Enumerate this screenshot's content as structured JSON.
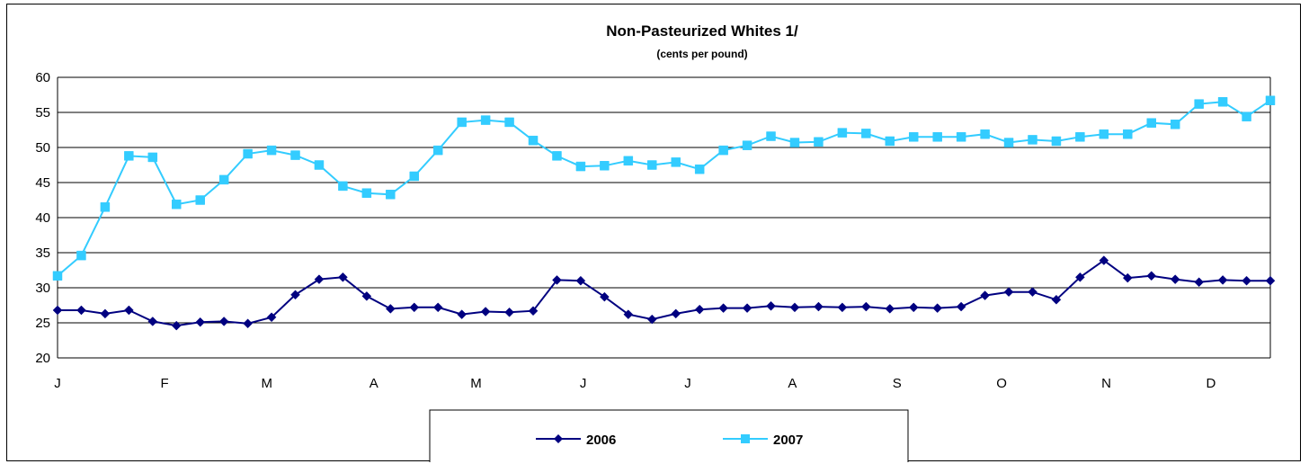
{
  "chart_data": {
    "type": "line",
    "title": "Non-Pasteurized Whites 1/",
    "subtitle": "(cents per pound)",
    "xlabel": "",
    "ylabel": "",
    "ylim": [
      20,
      60
    ],
    "yticks": [
      20,
      25,
      30,
      35,
      40,
      45,
      50,
      55,
      60
    ],
    "grid": true,
    "legend_position": "bottom",
    "month_labels": [
      {
        "label": "J",
        "index": 0
      },
      {
        "label": "F",
        "index": 4.5
      },
      {
        "label": "M",
        "index": 8.8
      },
      {
        "label": "A",
        "index": 13.3
      },
      {
        "label": "M",
        "index": 17.6
      },
      {
        "label": "J",
        "index": 22.1
      },
      {
        "label": "J",
        "index": 26.5
      },
      {
        "label": "A",
        "index": 30.9
      },
      {
        "label": "S",
        "index": 35.3
      },
      {
        "label": "O",
        "index": 39.7
      },
      {
        "label": "N",
        "index": 44.1
      },
      {
        "label": "D",
        "index": 48.5
      }
    ],
    "series": [
      {
        "name": "2006",
        "color": "#000080",
        "marker": "diamond",
        "values": [
          26.8,
          26.8,
          26.3,
          26.8,
          25.2,
          24.6,
          25.1,
          25.2,
          24.9,
          25.8,
          29.0,
          31.2,
          31.5,
          28.8,
          27.0,
          27.2,
          27.2,
          26.2,
          26.6,
          26.5,
          26.7,
          31.1,
          31.0,
          28.7,
          26.2,
          25.5,
          26.3,
          26.9,
          27.1,
          27.1,
          27.4,
          27.2,
          27.3,
          27.2,
          27.3,
          27.0,
          27.2,
          27.1,
          27.3,
          28.9,
          29.4,
          29.4,
          28.3,
          31.5,
          33.9,
          31.4,
          31.7,
          31.2,
          30.8,
          31.1,
          31.0,
          31.0
        ]
      },
      {
        "name": "2007",
        "color": "#33CCFF",
        "marker": "square",
        "values": [
          31.7,
          34.6,
          41.5,
          48.8,
          48.6,
          41.9,
          42.5,
          45.4,
          49.1,
          49.6,
          48.9,
          47.5,
          44.5,
          43.5,
          43.3,
          45.9,
          49.6,
          53.6,
          53.9,
          53.6,
          51.0,
          48.8,
          47.3,
          47.4,
          48.1,
          47.5,
          47.9,
          46.9,
          49.6,
          50.3,
          51.6,
          50.7,
          50.8,
          52.1,
          52.0,
          50.9,
          51.5,
          51.5,
          51.5,
          51.9,
          50.7,
          51.1,
          50.9,
          51.5,
          51.9,
          51.9,
          53.5,
          53.3,
          56.2,
          56.5,
          54.4,
          56.7
        ]
      }
    ]
  }
}
